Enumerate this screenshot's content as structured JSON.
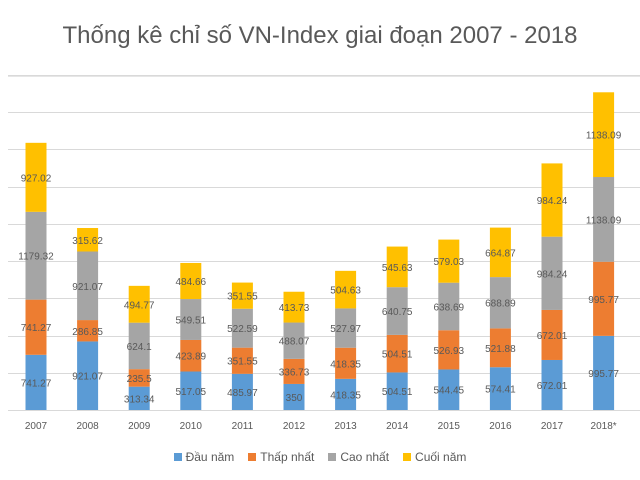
{
  "chart_data": {
    "type": "bar",
    "stacked": true,
    "title": "Thống kê chỉ số VN-Index giai đoạn 2007 - 2018",
    "xlabel": "",
    "ylabel": "",
    "ylim": [
      0,
      4500
    ],
    "grid": true,
    "y_tick_labels_visible": false,
    "legend_position": "bottom",
    "categories": [
      "2007",
      "2008",
      "2009",
      "2010",
      "2011",
      "2012",
      "2013",
      "2014",
      "2015",
      "2016",
      "2017",
      "2018*"
    ],
    "series": [
      {
        "name": "Đầu năm",
        "color": "#5b9bd5",
        "values": [
          741.27,
          921.07,
          313.34,
          517.05,
          485.97,
          350,
          418.35,
          504.51,
          544.45,
          574.41,
          672.01,
          995.77
        ],
        "labels": [
          "741.27",
          "921.07",
          "313.34",
          "517.05",
          "485.97",
          "350",
          "418.35",
          "504.51",
          "544.45",
          "574.41",
          "672.01",
          "995.77"
        ]
      },
      {
        "name": "Thấp nhất",
        "color": "#ed7d31",
        "values": [
          741.27,
          286.85,
          235.5,
          423.89,
          351.55,
          336.73,
          418.35,
          504.51,
          526.93,
          521.88,
          672.01,
          995.77
        ],
        "labels": [
          "741.27",
          "286.85",
          "235.5",
          "423.89",
          "351.55",
          "336.73",
          "418.35",
          "504.51",
          "526.93",
          "521.88",
          "672.01",
          "995.77"
        ]
      },
      {
        "name": "Cao nhất",
        "color": "#a5a5a5",
        "values": [
          1179.32,
          921.07,
          624.1,
          549.51,
          522.59,
          488.07,
          527.97,
          640.75,
          638.69,
          688.89,
          984.24,
          1138.09
        ],
        "labels": [
          "1179.32",
          "921.07",
          "624.1",
          "549.51",
          "522.59",
          "488.07",
          "527.97",
          "640.75",
          "638.69",
          "688.89",
          "984.24",
          "1138.09"
        ]
      },
      {
        "name": "Cuối năm",
        "color": "#ffc000",
        "values": [
          927.02,
          315.62,
          494.77,
          484.66,
          351.55,
          413.73,
          504.63,
          545.63,
          579.03,
          664.87,
          984.24,
          1138.09
        ],
        "labels": [
          "927.02",
          "315.62",
          "494.77",
          "484.66",
          "351.55",
          "413.73",
          "504.63",
          "545.63",
          "579.03",
          "664.87",
          "984.24",
          "1138.09"
        ]
      }
    ],
    "gridline_values": [
      0,
      500,
      1000,
      1500,
      2000,
      2500,
      3000,
      3500,
      4000,
      4500
    ]
  }
}
